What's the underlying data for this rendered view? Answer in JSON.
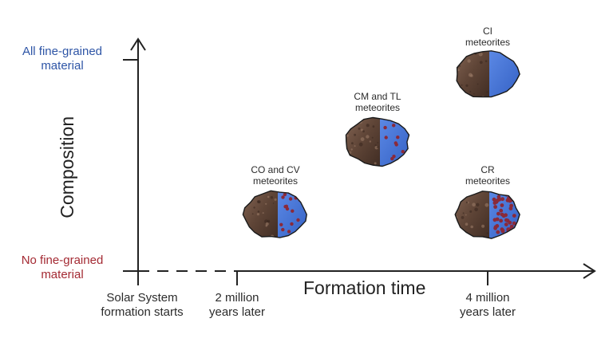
{
  "y_axis": {
    "title": "Composition",
    "top_label": "All fine-grained\nmaterial",
    "bottom_label": "No fine-grained\nmaterial",
    "top_color": "#2e55a6",
    "bottom_color": "#a42a33"
  },
  "x_axis": {
    "title": "Formation time",
    "ticks": [
      "Solar System\nformation starts",
      "2 million\nyears later",
      "4 million\nyears later"
    ]
  },
  "meteorites": [
    {
      "label": "CO and CV\nmeteorites",
      "dots": "medium"
    },
    {
      "label": "CM and TL\nmeteorites",
      "dots": "sparse"
    },
    {
      "label": "CI\nmeteorites",
      "dots": "none"
    },
    {
      "label": "CR\nmeteorites",
      "dots": "dense"
    }
  ],
  "colors": {
    "rock_brown": "#5f4537",
    "fine_grained_blue": "#3e6fd2",
    "chondrule_red": "#8a2a3a",
    "axis": "#222222"
  }
}
